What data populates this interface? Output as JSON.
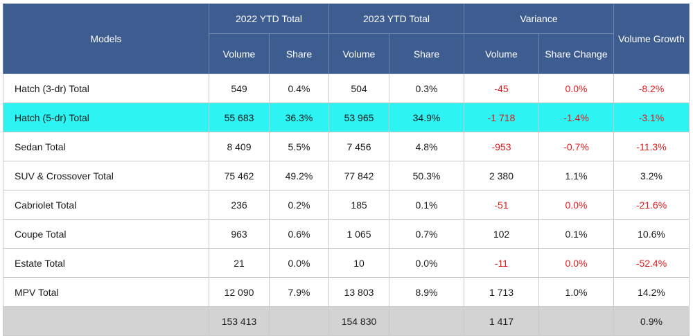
{
  "chart_data": {
    "type": "table",
    "headers": {
      "models": "Models",
      "group_2022": "2022 YTD Total",
      "group_2023": "2023 YTD Total",
      "group_variance": "Variance",
      "volume_growth": "Volume Growth",
      "sub_volume": "Volume",
      "sub_share": "Share",
      "sub_share_change": "Share Change"
    },
    "rows": [
      {
        "model": "Hatch (3-dr) Total",
        "v2022": "549",
        "s2022": "0.4%",
        "v2023": "504",
        "s2023": "0.3%",
        "var_vol": "-45",
        "var_share": "0.0%",
        "growth": "-8.2%",
        "highlight": false,
        "neg": [
          true,
          true,
          true
        ]
      },
      {
        "model": "Hatch (5-dr) Total",
        "v2022": "55 683",
        "s2022": "36.3%",
        "v2023": "53 965",
        "s2023": "34.9%",
        "var_vol": "-1 718",
        "var_share": "-1.4%",
        "growth": "-3.1%",
        "highlight": true,
        "neg": [
          true,
          true,
          true
        ]
      },
      {
        "model": "Sedan Total",
        "v2022": "8 409",
        "s2022": "5.5%",
        "v2023": "7 456",
        "s2023": "4.8%",
        "var_vol": "-953",
        "var_share": "-0.7%",
        "growth": "-11.3%",
        "highlight": false,
        "neg": [
          true,
          true,
          true
        ]
      },
      {
        "model": "SUV & Crossover Total",
        "v2022": "75 462",
        "s2022": "49.2%",
        "v2023": "77 842",
        "s2023": "50.3%",
        "var_vol": "2 380",
        "var_share": "1.1%",
        "growth": "3.2%",
        "highlight": false,
        "neg": [
          false,
          false,
          false
        ]
      },
      {
        "model": "Cabriolet Total",
        "v2022": "236",
        "s2022": "0.2%",
        "v2023": "185",
        "s2023": "0.1%",
        "var_vol": "-51",
        "var_share": "0.0%",
        "growth": "-21.6%",
        "highlight": false,
        "neg": [
          true,
          true,
          true
        ]
      },
      {
        "model": "Coupe Total",
        "v2022": "963",
        "s2022": "0.6%",
        "v2023": "1 065",
        "s2023": "0.7%",
        "var_vol": "102",
        "var_share": "0.1%",
        "growth": "10.6%",
        "highlight": false,
        "neg": [
          false,
          false,
          false
        ]
      },
      {
        "model": "Estate Total",
        "v2022": "21",
        "s2022": "0.0%",
        "v2023": "10",
        "s2023": "0.0%",
        "var_vol": "-11",
        "var_share": "0.0%",
        "growth": "-52.4%",
        "highlight": false,
        "neg": [
          true,
          true,
          true
        ]
      },
      {
        "model": "MPV Total",
        "v2022": "12 090",
        "s2022": "7.9%",
        "v2023": "13 803",
        "s2023": "8.9%",
        "var_vol": "1 713",
        "var_share": "1.0%",
        "growth": "14.2%",
        "highlight": false,
        "neg": [
          false,
          false,
          false
        ]
      }
    ],
    "total": {
      "model": "",
      "v2022": "153 413",
      "s2022": "",
      "v2023": "154 830",
      "s2023": "",
      "var_vol": "1 417",
      "var_share": "",
      "growth": "0.9%"
    }
  },
  "colors": {
    "header_bg": "#3d5d91",
    "highlight_row": "#2ef3f3",
    "total_row": "#d3d3d3",
    "negative_text": "#e01919"
  }
}
